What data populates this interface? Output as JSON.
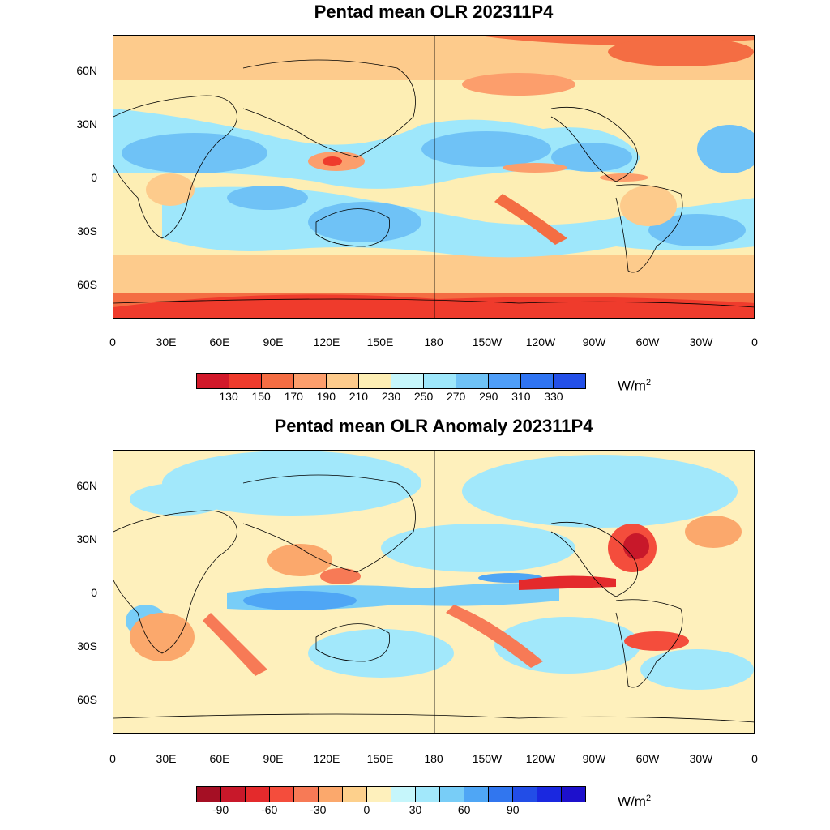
{
  "panels": [
    {
      "title": "Pentad mean OLR 202311P4",
      "lat_labels": [
        "60N",
        "30N",
        "0",
        "30S",
        "60S"
      ],
      "lon_labels": [
        "0",
        "30E",
        "60E",
        "90E",
        "120E",
        "150E",
        "180",
        "150W",
        "120W",
        "90W",
        "60W",
        "30W",
        "0"
      ],
      "legend": {
        "colors": [
          "#d2192a",
          "#ef3b2c",
          "#f46d43",
          "#fc9e6c",
          "#fdcb8c",
          "#fdeeb4",
          "#c6f6fb",
          "#9ee7fb",
          "#6fc2f6",
          "#4f9ef8",
          "#2f74f2",
          "#2450e8"
        ],
        "tick_labels": [
          "130",
          "150",
          "170",
          "190",
          "210",
          "230",
          "250",
          "270",
          "290",
          "310",
          "330"
        ],
        "unit": "W/m",
        "unit_sup": "2"
      }
    },
    {
      "title": "Pentad mean OLR Anomaly 202311P4",
      "lat_labels": [
        "60N",
        "30N",
        "0",
        "30S",
        "60S"
      ],
      "lon_labels": [
        "0",
        "30E",
        "60E",
        "90E",
        "120E",
        "150E",
        "180",
        "150W",
        "120W",
        "90W",
        "60W",
        "30W",
        "0"
      ],
      "legend": {
        "colors": [
          "#a50f24",
          "#c8182a",
          "#e42a2c",
          "#f44d3c",
          "#f77a56",
          "#fba86c",
          "#fdd08c",
          "#fef0bc",
          "#c6f6fb",
          "#a2e8fb",
          "#78cdf7",
          "#4fa6f5",
          "#3176ef",
          "#224de7",
          "#1a28e0",
          "#1d10cc"
        ],
        "tick_labels": [
          "-90",
          "",
          "-60",
          "",
          "-30",
          "",
          "0",
          "",
          "30",
          "",
          "60",
          "",
          "90"
        ],
        "unit": "W/m",
        "unit_sup": "2"
      }
    }
  ]
}
